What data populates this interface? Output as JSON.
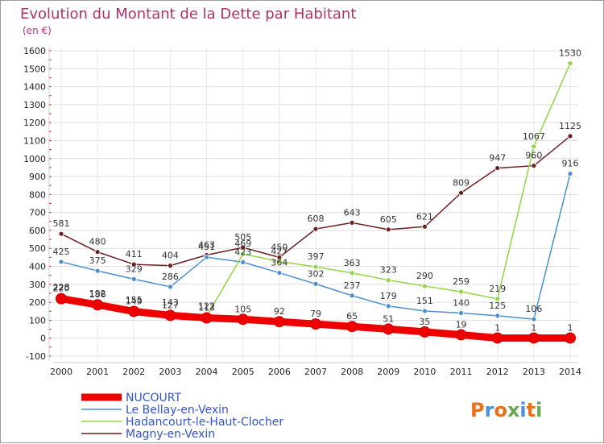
{
  "chart_data": {
    "type": "line",
    "title": "Evolution du Montant de la Dette par Habitant",
    "subtitle": "(en €)",
    "xlabel": "",
    "ylabel": "",
    "x": [
      "2000",
      "2001",
      "2002",
      "2003",
      "2004",
      "2005",
      "2006",
      "2007",
      "2008",
      "2009",
      "2010",
      "2011",
      "2012",
      "2013",
      "2014"
    ],
    "ylim": [
      -100,
      1600
    ],
    "yticks": [
      -100,
      0,
      100,
      200,
      300,
      400,
      500,
      600,
      700,
      800,
      900,
      1000,
      1100,
      1200,
      1300,
      1400,
      1500,
      1600
    ],
    "grid": true,
    "legend_position": "bottom-left",
    "series": [
      {
        "name": "NUCOURT",
        "color": "#ee0000",
        "values": [
          220,
          186,
          149,
          127,
          113,
          105,
          92,
          79,
          65,
          51,
          35,
          19,
          1,
          1,
          1
        ]
      },
      {
        "name": "Le Bellay-en-Vexin",
        "color": "#4c8fd0",
        "values": [
          425,
          375,
          329,
          286,
          451,
          423,
          364,
          302,
          237,
          179,
          151,
          140,
          125,
          106,
          916
        ]
      },
      {
        "name": "Hadancourt-le-Haut-Clocher",
        "color": "#8fd642",
        "values": [
          228,
          192,
          155,
          143,
          122,
          469,
          427,
          397,
          363,
          323,
          290,
          259,
          219,
          1067,
          1530
        ]
      },
      {
        "name": "Magny-en-Vexin",
        "color": "#6b1f1f",
        "values": [
          581,
          480,
          411,
          404,
          463,
          505,
          450,
          608,
          643,
          605,
          621,
          809,
          947,
          960,
          1125
        ]
      }
    ]
  },
  "branding": {
    "logo_text": "Proxiti",
    "logo_colors": [
      "#e8721c",
      "#4a90d9",
      "#e8721c",
      "#6aa84f",
      "#4a90d9",
      "#e8721c",
      "#6aa84f"
    ]
  }
}
